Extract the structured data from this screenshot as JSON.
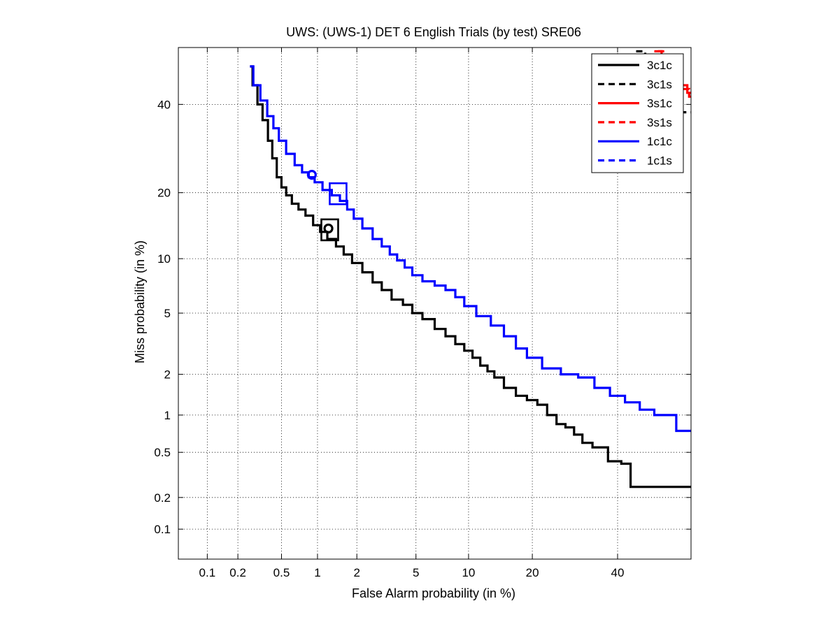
{
  "chart_data": {
    "type": "line",
    "title": "UWS: (UWS-1) DET 6 English Trials (by test) SRE06",
    "xlabel": "False Alarm probability (in %)",
    "ylabel": "Miss probability (in %)",
    "x_scale": "probit",
    "y_scale": "probit",
    "xlim": [
      0.05,
      60
    ],
    "ylim": [
      0.05,
      55
    ],
    "x_ticks": [
      0.1,
      0.2,
      0.5,
      1,
      2,
      5,
      10,
      20,
      40
    ],
    "x_tick_labels": [
      "0.1",
      "0.2",
      "0.5",
      "1",
      "2",
      "5",
      "10",
      "20",
      "40"
    ],
    "y_ticks": [
      0.1,
      0.2,
      0.5,
      1,
      2,
      5,
      10,
      20,
      40
    ],
    "y_tick_labels": [
      "0.1",
      "0.2",
      "0.5",
      "1",
      "2",
      "5",
      "10",
      "20",
      "40"
    ],
    "grid": true,
    "legend_position": "top-right",
    "series": [
      {
        "name": "3c1c",
        "color": "#000000",
        "dash": "solid",
        "x": [
          0.26,
          0.29,
          0.32,
          0.36,
          0.4,
          0.43,
          0.48,
          0.52,
          0.58,
          0.65,
          0.75,
          0.85,
          1.0,
          1.1,
          1.3,
          1.5,
          1.7,
          2.0,
          2.4,
          2.8,
          3.2,
          3.8,
          4.5,
          5.0,
          6.0,
          7.0,
          8.0,
          9.0,
          10.0,
          11.0,
          12.0,
          13.0,
          14.0,
          16.0,
          18.0,
          20.0,
          22.0,
          24.0,
          26.0,
          28.0,
          30.0,
          32.0,
          35.0,
          40.0,
          42.0,
          45.0,
          60.0
        ],
        "y": [
          50,
          45,
          40,
          36,
          31,
          27,
          23,
          21,
          19.5,
          18,
          17,
          16,
          14.5,
          13.5,
          12.5,
          11.5,
          10.5,
          9.5,
          8.5,
          7.5,
          6.8,
          6.0,
          5.6,
          5.0,
          4.6,
          4.0,
          3.6,
          3.2,
          2.9,
          2.6,
          2.3,
          2.1,
          1.9,
          1.6,
          1.4,
          1.3,
          1.2,
          1.0,
          0.85,
          0.8,
          0.7,
          0.6,
          0.55,
          0.42,
          0.4,
          0.25,
          0.25
        ]
      },
      {
        "name": "3c1s",
        "color": "#000000",
        "dash": "dashed",
        "x": [
          45.0,
          50.0,
          55.0,
          60.0
        ],
        "y": [
          54,
          48,
          42,
          38
        ]
      },
      {
        "name": "3s1c",
        "color": "#ff0000",
        "dash": "solid",
        "x": [
          50.0,
          54.0,
          58.0,
          60.0
        ],
        "y": [
          54,
          49,
          45,
          43
        ]
      },
      {
        "name": "3s1s",
        "color": "#ff0000",
        "dash": "dashed",
        "x": [
          51.0,
          55.0,
          59.0,
          60.0
        ],
        "y": [
          54,
          48,
          44,
          42
        ]
      },
      {
        "name": "1c1c",
        "color": "#0000ff",
        "dash": "solid",
        "x": [
          0.26,
          0.3,
          0.35,
          0.4,
          0.45,
          0.5,
          0.6,
          0.7,
          0.8,
          0.9,
          1.0,
          1.2,
          1.4,
          1.6,
          1.8,
          2.0,
          2.4,
          2.8,
          3.2,
          3.6,
          4.0,
          4.5,
          5.0,
          6.0,
          7.0,
          8.0,
          9.0,
          10.0,
          12.0,
          14.0,
          16.0,
          18.0,
          20.0,
          24.0,
          28.0,
          32.0,
          36.0,
          40.0,
          44.0,
          48.0,
          52.0,
          60.0
        ],
        "y": [
          50,
          45,
          41,
          37,
          34,
          31,
          28,
          25.5,
          24,
          23,
          22,
          20.5,
          19.5,
          18.5,
          17,
          15.5,
          14,
          12.5,
          11.5,
          10.5,
          9.8,
          9.0,
          8.2,
          7.6,
          7.2,
          6.8,
          6.2,
          5.5,
          4.8,
          4.2,
          3.6,
          3.0,
          2.6,
          2.2,
          2.0,
          1.9,
          1.6,
          1.4,
          1.25,
          1.1,
          1.0,
          0.75
        ]
      },
      {
        "name": "1c1s",
        "color": "#0000ff",
        "dash": "dashed",
        "x": [],
        "y": []
      }
    ],
    "markers": [
      {
        "type": "circle",
        "color": "#0000ff",
        "x": 0.9,
        "y": 23.5
      },
      {
        "type": "square",
        "color": "#0000ff",
        "x": 1.45,
        "y": 19.8
      },
      {
        "type": "circle",
        "color": "#000000",
        "x": 1.22,
        "y": 14.0
      },
      {
        "type": "square",
        "color": "#000000",
        "x": 1.25,
        "y": 13.8
      }
    ]
  }
}
